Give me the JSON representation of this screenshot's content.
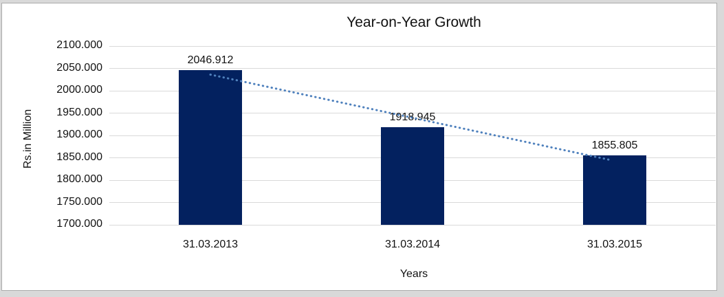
{
  "chart_data": {
    "type": "bar",
    "title": "Year-on-Year Growth",
    "xlabel": "Years",
    "ylabel": "Rs.in Million",
    "categories": [
      "31.03.2013",
      "31.03.2014",
      "31.03.2015"
    ],
    "values": [
      2046.912,
      1918.945,
      1855.805
    ],
    "data_labels": [
      "2046.912",
      "1918.945",
      "1855.805"
    ],
    "ylim": [
      1700,
      2100
    ],
    "ytick_step": 50,
    "yticks": [
      "2100.000",
      "2050.000",
      "2000.000",
      "1950.000",
      "1900.000",
      "1850.000",
      "1800.000",
      "1750.000",
      "1700.000"
    ],
    "grid": "horizontal",
    "legend_position": "none",
    "trendline": {
      "type": "linear",
      "style": "dotted"
    },
    "colors": {
      "bar": "#03215f",
      "trendline": "#4f81bd",
      "gridline": "#d9d9d9",
      "text": "#111111",
      "chart_background": "#ffffff",
      "page_background": "#d9d9d9",
      "frame_border": "#ababab"
    }
  }
}
